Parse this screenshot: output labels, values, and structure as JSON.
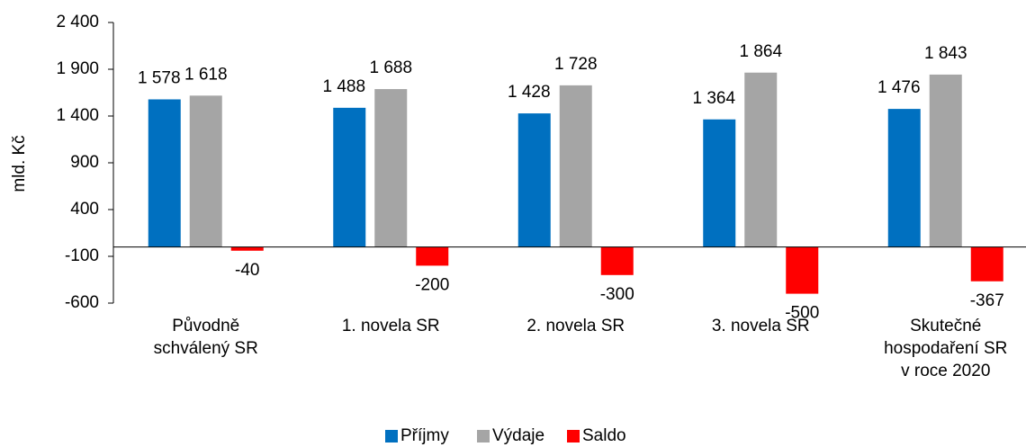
{
  "chart_data": {
    "type": "bar",
    "y_label": "mld. Kč",
    "categories": [
      [
        "Původně",
        "schválený SR"
      ],
      [
        "1. novela SR"
      ],
      [
        "2. novela SR"
      ],
      [
        "3. novela SR"
      ],
      [
        "Skutečné",
        "hospodaření SR",
        "v roce 2020"
      ]
    ],
    "series": [
      {
        "name": "Příjmy",
        "color": "#0070c0",
        "values": [
          1578,
          1488,
          1428,
          1364,
          1476
        ],
        "value_labels": [
          "1 578",
          "1 488",
          "1 428",
          "1 364",
          "1 476"
        ]
      },
      {
        "name": "Výdaje",
        "color": "#a5a5a5",
        "values": [
          1618,
          1688,
          1728,
          1864,
          1843
        ],
        "value_labels": [
          "1 618",
          "1 688",
          "1 728",
          "1 864",
          "1 843"
        ]
      },
      {
        "name": "Saldo",
        "color": "#ff0000",
        "values": [
          -40,
          -200,
          -300,
          -500,
          -367
        ],
        "value_labels": [
          "-40",
          "-200",
          "-300",
          "-500",
          "-367"
        ]
      }
    ],
    "ylim": [
      -600,
      2400
    ],
    "yticks": [
      {
        "value": 2400,
        "label": "2 400"
      },
      {
        "value": 1900,
        "label": "1 900"
      },
      {
        "value": 1400,
        "label": "1 400"
      },
      900,
      400,
      -100,
      -600
    ],
    "grid": false,
    "legend": "bottom"
  }
}
